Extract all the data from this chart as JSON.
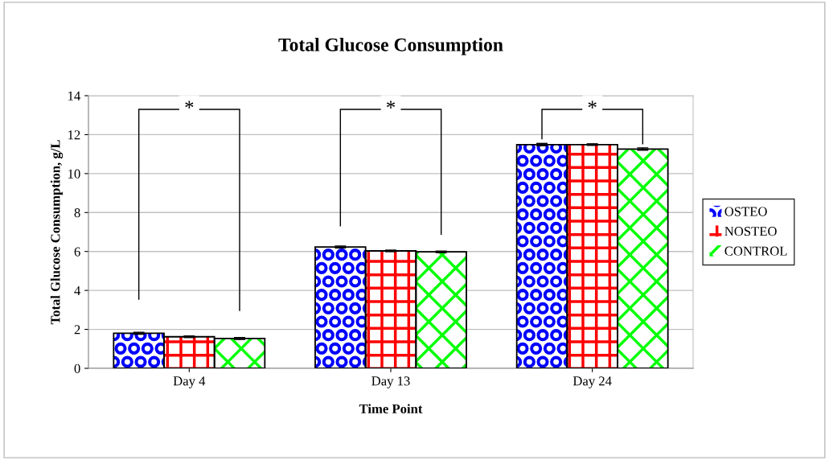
{
  "chart_data": {
    "type": "bar",
    "title": "Total Glucose Consumption",
    "xlabel": "Time Point",
    "ylabel": "Total Glucose Consumption, g/L",
    "categories": [
      "Day 4",
      "Day 13",
      "Day 24"
    ],
    "series": [
      {
        "name": "OSTEO",
        "color": "#0000ff",
        "values": [
          1.8,
          6.23,
          11.49
        ],
        "errors": [
          0.05,
          0.05,
          0.06
        ]
      },
      {
        "name": "NOSTEO",
        "color": "#ff0000",
        "values": [
          1.62,
          6.03,
          11.49
        ],
        "errors": [
          0.04,
          0.04,
          0.04
        ]
      },
      {
        "name": "CONTROL",
        "color": "#00ff00",
        "values": [
          1.53,
          5.98,
          11.26
        ],
        "errors": [
          0.05,
          0.04,
          0.06
        ]
      }
    ],
    "ylim": [
      0,
      14
    ],
    "yticks": [
      0,
      2,
      4,
      6,
      8,
      10,
      12,
      14
    ],
    "grid": "y",
    "legend": "right",
    "annotations": [
      "*",
      "*",
      "*"
    ]
  }
}
